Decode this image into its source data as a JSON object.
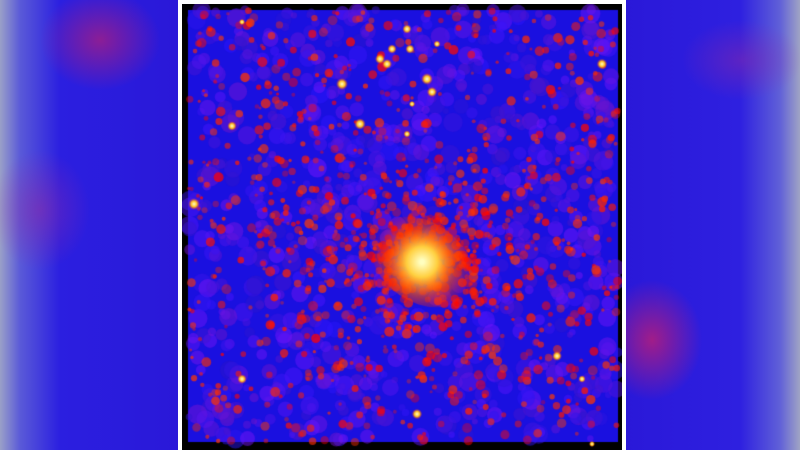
{
  "image": {
    "subject": "x-ray-false-color-field",
    "colors": {
      "background": "#000000",
      "diffuse": "#1a10e0",
      "emission": "#ff2a00",
      "hotspot": "#ffff80",
      "frame": "#ffffff"
    }
  }
}
